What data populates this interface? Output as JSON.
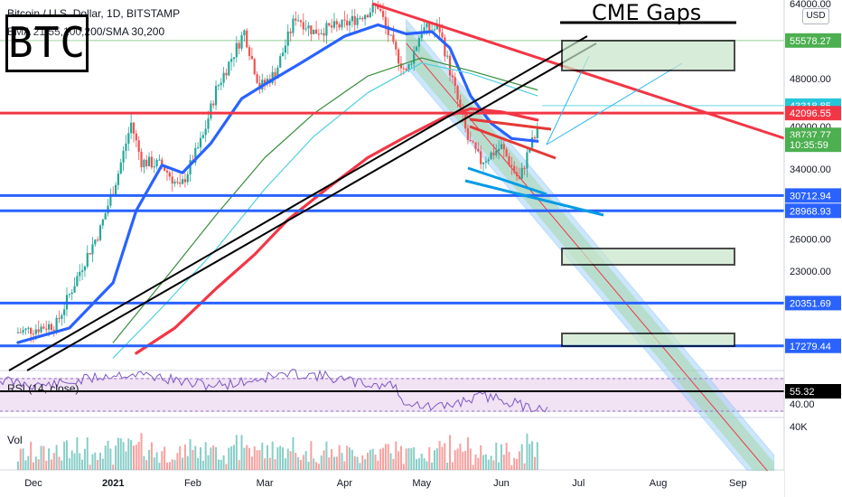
{
  "header": {
    "symbol_line": "Bitcoin / U.S. Dollar, 1D, BITSTAMP",
    "indicator_line": "EMA 21,55,100,200/SMA 30,200"
  },
  "overlay": {
    "btc_box_text": "BTC",
    "cme_gaps_label": "CME Gaps",
    "currency_button": "USD"
  },
  "rsi": {
    "label": "RSI (14, close)",
    "value_label": "55.32",
    "tick_label": "40.00"
  },
  "volume": {
    "label": "Vol",
    "tick_label": "40K"
  },
  "chart_data": {
    "type": "line",
    "title": "Bitcoin / U.S. Dollar, 1D, BITSTAMP",
    "x_ticks": [
      "Dec",
      "2021",
      "Feb",
      "Mar",
      "Apr",
      "May",
      "Jun",
      "Jul",
      "Aug",
      "Sep"
    ],
    "y_ticks": [
      "64000.00",
      "48000.00",
      "40000.00",
      "34000.00",
      "26000.00",
      "23000.00"
    ],
    "ylim": [
      16000,
      64000
    ],
    "price_tags": [
      {
        "label": "55578.27",
        "price": 55578,
        "color": "#4caf50"
      },
      {
        "label": "43318.85",
        "price": 43319,
        "color": "#26c6da"
      },
      {
        "label": "42096.55",
        "price": 42096,
        "color": "#f23645"
      },
      {
        "label": "38737.77",
        "price": 38738,
        "color": "#4caf50"
      },
      {
        "label": "10:35:59",
        "price": 37300,
        "color": "#4caf50"
      },
      {
        "label": "30712.94",
        "price": 30713,
        "color": "#2962ff"
      },
      {
        "label": "28968.93",
        "price": 28969,
        "color": "#2962ff"
      },
      {
        "label": "20351.69",
        "price": 20352,
        "color": "#2962ff"
      },
      {
        "label": "17279.44",
        "price": 17279,
        "color": "#2962ff"
      }
    ],
    "horizontal_levels": [
      42096,
      30713,
      28969,
      20352,
      17279
    ],
    "series": [
      {
        "name": "EMA 21",
        "color": "#2962ff",
        "x": [
          "Nov 25",
          "Dec 15",
          "Jan 1",
          "Jan 10",
          "Jan 20",
          "Jan 28",
          "Feb 8",
          "Feb 20",
          "Mar 1",
          "Mar 15",
          "Apr 1",
          "Apr 14",
          "Apr 25",
          "May 5",
          "May 12",
          "May 20",
          "May 28",
          "Jun 5",
          "Jun 15"
        ],
        "y": [
          17500,
          18500,
          22000,
          29000,
          34500,
          33500,
          37500,
          44500,
          47000,
          51000,
          56500,
          59000,
          57000,
          57500,
          54000,
          45000,
          40500,
          38200,
          37800
        ]
      },
      {
        "name": "EMA 200",
        "color": "#f23645",
        "x": [
          "Jan 10",
          "Jan 25",
          "Feb 10",
          "Feb 25",
          "Mar 10",
          "Mar 25",
          "Apr 10",
          "Apr 25",
          "May 10",
          "May 20",
          "Jun 1",
          "Jun 15"
        ],
        "y": [
          16800,
          18500,
          21500,
          24500,
          28000,
          31500,
          35500,
          38500,
          41500,
          42800,
          42300,
          41000
        ]
      },
      {
        "name": "EMA 100",
        "color": "#388e3c",
        "x": [
          "Jan 1",
          "Jan 20",
          "Feb 10",
          "Mar 1",
          "Mar 20",
          "Apr 10",
          "May 1",
          "May 20",
          "Jun 15"
        ],
        "y": [
          17500,
          22000,
          28500,
          35500,
          42000,
          48500,
          52000,
          49500,
          46000
        ]
      },
      {
        "name": "SMA 30",
        "color": "#4dd0e1",
        "x": [
          "Jan 1",
          "Jan 20",
          "Feb 10",
          "Mar 1",
          "Mar 20",
          "Apr 10",
          "May 1",
          "May 20",
          "Jun 15"
        ],
        "y": [
          16500,
          20000,
          25000,
          31500,
          38500,
          45500,
          51000,
          49000,
          45000
        ]
      }
    ],
    "close": {
      "x": [
        "Nov 25",
        "Dec 10",
        "Dec 20",
        "Dec 27",
        "Jan 3",
        "Jan 8",
        "Jan 12",
        "Jan 20",
        "Jan 27",
        "Feb 5",
        "Feb 10",
        "Feb 21",
        "Feb 27",
        "Mar 5",
        "Mar 13",
        "Mar 20",
        "Apr 1",
        "Apr 14",
        "Apr 20",
        "Apr 25",
        "May 1",
        "May 8",
        "May 12",
        "May 19",
        "May 24",
        "Jun 1",
        "Jun 8",
        "Jun 12",
        "Jun 15"
      ],
      "y": [
        18200,
        18800,
        23500,
        27000,
        33500,
        40500,
        35000,
        34500,
        31500,
        38500,
        46000,
        57500,
        46500,
        49000,
        61000,
        57500,
        59000,
        63500,
        54000,
        49000,
        58000,
        58000,
        49500,
        38000,
        35000,
        37000,
        32500,
        37000,
        39000
      ]
    }
  }
}
